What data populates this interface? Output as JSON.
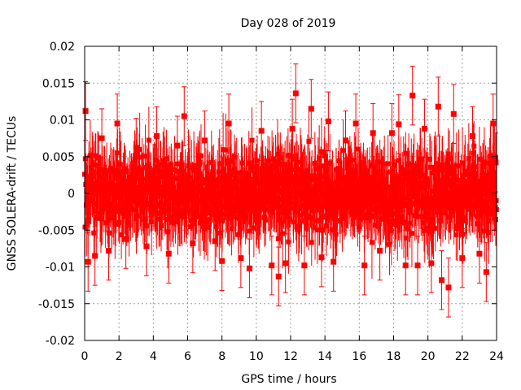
{
  "chart_data": {
    "type": "scatter",
    "title": "Day 028 of 2019",
    "xlabel": "GPS time / hours",
    "ylabel": "GNSS SOLERA-drift / TECUs",
    "xlim": [
      0,
      24
    ],
    "ylim": [
      -0.02,
      0.02
    ],
    "x_ticks": [
      0,
      2,
      4,
      6,
      8,
      10,
      12,
      14,
      16,
      18,
      20,
      22,
      24
    ],
    "x_tick_labels": [
      "0",
      "2",
      "4",
      "6",
      "8",
      "10",
      "12",
      "14",
      "16",
      "18",
      "20",
      "22",
      "24"
    ],
    "y_ticks": [
      -0.02,
      -0.015,
      -0.01,
      -0.005,
      0,
      0.005,
      0.01,
      0.015,
      0.02
    ],
    "y_tick_labels": [
      "-0.02",
      "-0.015",
      "-0.01",
      "-0.005",
      "0",
      "0.005",
      "0.01",
      "0.015",
      "0.02"
    ],
    "grid": true,
    "series": [
      {
        "name": "SOLERA drift",
        "color": "#ff0000",
        "marker": "square",
        "error_bars": true,
        "points": [
          {
            "x": 0.05,
            "y": 0.0112,
            "err": 0.004
          },
          {
            "x": 0.2,
            "y": -0.0093,
            "err": 0.004
          },
          {
            "x": 0.6,
            "y": -0.0085,
            "err": 0.004
          },
          {
            "x": 1.0,
            "y": 0.0075,
            "err": 0.004
          },
          {
            "x": 1.4,
            "y": -0.0078,
            "err": 0.004
          },
          {
            "x": 1.9,
            "y": 0.0095,
            "err": 0.004
          },
          {
            "x": 2.4,
            "y": -0.0062,
            "err": 0.004
          },
          {
            "x": 3.0,
            "y": 0.0062,
            "err": 0.004
          },
          {
            "x": 3.6,
            "y": -0.0072,
            "err": 0.004
          },
          {
            "x": 4.2,
            "y": 0.0078,
            "err": 0.004
          },
          {
            "x": 4.9,
            "y": -0.0082,
            "err": 0.004
          },
          {
            "x": 5.4,
            "y": 0.0065,
            "err": 0.004
          },
          {
            "x": 5.8,
            "y": 0.0105,
            "err": 0.004
          },
          {
            "x": 6.3,
            "y": -0.0068,
            "err": 0.004
          },
          {
            "x": 7.0,
            "y": 0.0072,
            "err": 0.004
          },
          {
            "x": 7.6,
            "y": -0.0065,
            "err": 0.004
          },
          {
            "x": 8.0,
            "y": -0.0092,
            "err": 0.004
          },
          {
            "x": 8.4,
            "y": 0.0095,
            "err": 0.004
          },
          {
            "x": 9.1,
            "y": -0.0088,
            "err": 0.004
          },
          {
            "x": 9.6,
            "y": -0.0102,
            "err": 0.004
          },
          {
            "x": 10.3,
            "y": 0.0085,
            "err": 0.004
          },
          {
            "x": 10.9,
            "y": -0.0098,
            "err": 0.004
          },
          {
            "x": 11.3,
            "y": -0.0113,
            "err": 0.004
          },
          {
            "x": 11.7,
            "y": -0.0095,
            "err": 0.004
          },
          {
            "x": 12.1,
            "y": 0.0088,
            "err": 0.004
          },
          {
            "x": 12.3,
            "y": 0.0136,
            "err": 0.004
          },
          {
            "x": 12.8,
            "y": -0.0098,
            "err": 0.004
          },
          {
            "x": 13.2,
            "y": 0.0115,
            "err": 0.004
          },
          {
            "x": 13.8,
            "y": -0.0087,
            "err": 0.004
          },
          {
            "x": 14.2,
            "y": 0.0098,
            "err": 0.004
          },
          {
            "x": 14.5,
            "y": -0.0093,
            "err": 0.004
          },
          {
            "x": 15.2,
            "y": 0.0072,
            "err": 0.004
          },
          {
            "x": 15.8,
            "y": 0.0095,
            "err": 0.004
          },
          {
            "x": 16.3,
            "y": -0.0098,
            "err": 0.004
          },
          {
            "x": 16.8,
            "y": 0.0082,
            "err": 0.004
          },
          {
            "x": 17.2,
            "y": -0.0078,
            "err": 0.004
          },
          {
            "x": 17.9,
            "y": 0.0082,
            "err": 0.004
          },
          {
            "x": 18.3,
            "y": 0.0094,
            "err": 0.004
          },
          {
            "x": 18.7,
            "y": -0.0098,
            "err": 0.004
          },
          {
            "x": 19.1,
            "y": 0.0133,
            "err": 0.004
          },
          {
            "x": 19.4,
            "y": -0.0098,
            "err": 0.004
          },
          {
            "x": 19.8,
            "y": 0.0088,
            "err": 0.004
          },
          {
            "x": 20.2,
            "y": -0.0095,
            "err": 0.004
          },
          {
            "x": 20.6,
            "y": 0.0118,
            "err": 0.004
          },
          {
            "x": 20.8,
            "y": -0.0118,
            "err": 0.004
          },
          {
            "x": 21.2,
            "y": -0.0128,
            "err": 0.004
          },
          {
            "x": 21.5,
            "y": 0.0108,
            "err": 0.004
          },
          {
            "x": 22.0,
            "y": -0.0088,
            "err": 0.004
          },
          {
            "x": 22.6,
            "y": 0.0078,
            "err": 0.004
          },
          {
            "x": 23.0,
            "y": -0.0082,
            "err": 0.004
          },
          {
            "x": 23.4,
            "y": -0.0107,
            "err": 0.004
          },
          {
            "x": 23.8,
            "y": 0.0095,
            "err": 0.004
          },
          {
            "x": 23.95,
            "y": 0.0042,
            "err": 0.004
          }
        ]
      }
    ]
  }
}
